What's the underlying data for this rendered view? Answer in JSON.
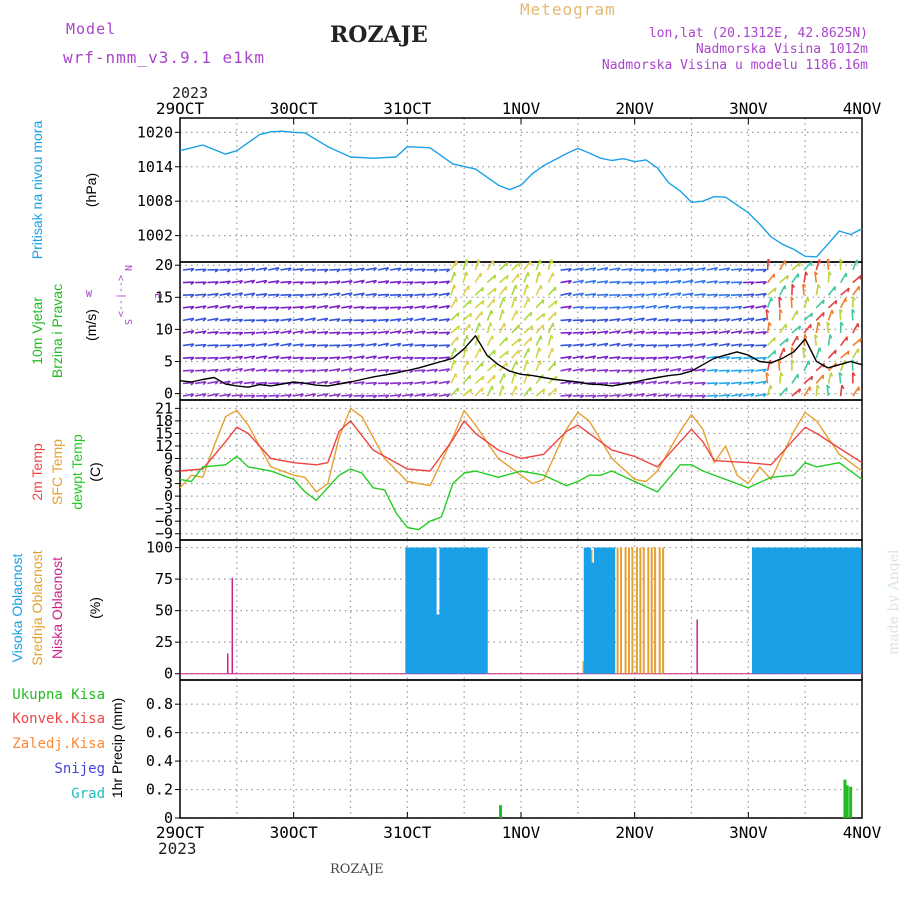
{
  "header": {
    "model_label": "Model",
    "model_name": "wrf-nmm_v3.9.1 e1km",
    "station_title": "ROZAJE",
    "meteogram_label": "Meteogram",
    "lonlat": "lon,lat (20.1312E, 42.8625N)",
    "elevation": "Nadmorska Visina 1012m",
    "model_elevation": "Nadmorska Visina u modelu 1186.16m",
    "footer_station": "ROZAJE",
    "watermark": "made by Angel",
    "year_top": "2023",
    "year_bottom": "2023"
  },
  "colors": {
    "pressure": "#1aa0e6",
    "wind_label": "#22bb22",
    "temp2m": "#ee4444",
    "sfc_temp": "#e6a030",
    "dewpt": "#22cc22",
    "cloud_high": "#1aa0e6",
    "cloud_mid": "#e6a030",
    "cloud_low": "#cc2288",
    "precip_total": "#22bb22",
    "precip_conv": "#ee4444",
    "precip_frz": "#ff8833",
    "precip_snow": "#4444dd",
    "precip_hail": "#22bbbb",
    "header_purple": "#aa44cc",
    "header_orange": "#e6b870"
  },
  "chart_data": [
    {
      "type": "line",
      "panel": "pressure",
      "ylabel": [
        "Pritisak na nivou mora",
        "(hPa)"
      ],
      "x_labels": [
        "29OCT",
        "30OCT",
        "31OCT",
        "1NOV",
        "2NOV",
        "3NOV",
        "4NOV"
      ],
      "yticks": [
        1002,
        1008,
        1014,
        1020
      ],
      "ylim": [
        997.4,
        1022.5
      ],
      "series": [
        {
          "key": "pressure",
          "x": [
            0,
            0.2,
            0.4,
            0.5,
            0.7,
            0.8,
            0.9,
            1.0,
            1.1,
            1.3,
            1.5,
            1.7,
            1.9,
            2.0,
            2.2,
            2.4,
            2.6,
            2.8,
            2.9,
            3.0,
            3.1,
            3.2,
            3.4,
            3.5,
            3.6,
            3.7,
            3.8,
            3.9,
            4.0,
            4.1,
            4.2,
            4.3,
            4.4,
            4.5,
            4.6,
            4.7,
            4.8,
            5.0,
            5.1,
            5.2,
            5.3,
            5.4,
            5.5,
            5.6,
            5.7,
            5.8,
            5.9,
            6.0
          ],
          "y": [
            1016.8,
            1017.8,
            1016.2,
            1016.8,
            1019.6,
            1020.1,
            1020.2,
            1020.0,
            1019.9,
            1017.5,
            1015.7,
            1015.5,
            1015.7,
            1017.5,
            1017.3,
            1014.5,
            1013.6,
            1010.8,
            1010.0,
            1010.8,
            1012.8,
            1014.2,
            1016.3,
            1017.2,
            1016.4,
            1015.5,
            1015.1,
            1015.4,
            1014.9,
            1015.2,
            1013.8,
            1011.2,
            1009.8,
            1007.8,
            1008.0,
            1008.8,
            1008.7,
            1006.0,
            1004.0,
            1001.8,
            1000.5,
            999.6,
            998.4,
            998.3,
            1000.5,
            1002.8,
            1002.2,
            1003.2
          ]
        }
      ]
    },
    {
      "type": "line",
      "panel": "wind",
      "ylabel": [
        "10m Vjetar",
        "Brzina i Pravac",
        "(m/s)"
      ],
      "compass": [
        "N",
        "E",
        "S",
        "W",
        "<--|-->"
      ],
      "yticks": [
        0,
        5,
        10,
        15,
        20
      ],
      "ylim": [
        -1,
        20.5
      ],
      "series": [
        {
          "key": "speed",
          "x": [
            0,
            0.1,
            0.2,
            0.3,
            0.4,
            0.5,
            0.6,
            0.7,
            0.8,
            0.9,
            1.0,
            1.1,
            1.2,
            1.3,
            1.4,
            1.5,
            1.6,
            1.7,
            1.8,
            1.9,
            2.0,
            2.1,
            2.2,
            2.3,
            2.4,
            2.5,
            2.6,
            2.7,
            2.8,
            2.9,
            3.0,
            3.1,
            3.2,
            3.3,
            3.4,
            3.5,
            3.6,
            3.7,
            3.8,
            3.9,
            4.0,
            4.1,
            4.2,
            4.3,
            4.4,
            4.5,
            4.6,
            4.7,
            4.8,
            4.9,
            5.0,
            5.1,
            5.2,
            5.3,
            5.4,
            5.5,
            5.6,
            5.7,
            5.8,
            5.9,
            6.0
          ],
          "y": [
            2.0,
            1.8,
            2.2,
            2.5,
            1.5,
            1.2,
            1.0,
            1.4,
            1.2,
            1.5,
            1.8,
            1.6,
            1.3,
            1.2,
            1.5,
            1.8,
            2.2,
            2.6,
            2.9,
            3.2,
            3.6,
            4.0,
            4.5,
            5.0,
            5.5,
            7.0,
            9.0,
            6.0,
            4.5,
            3.5,
            3.0,
            2.8,
            2.5,
            2.2,
            2.0,
            1.8,
            1.5,
            1.4,
            1.2,
            1.5,
            1.8,
            2.2,
            2.5,
            2.8,
            3.0,
            3.5,
            4.5,
            5.5,
            6.0,
            6.5,
            6.0,
            5.0,
            4.8,
            5.5,
            6.5,
            8.5,
            5.0,
            4.0,
            4.5,
            5.0,
            4.5
          ]
        }
      ]
    },
    {
      "type": "line",
      "panel": "temperature",
      "ylabel": [
        "2m Temp",
        "SFC Temp",
        "dewpt Temp",
        "(C)"
      ],
      "yticks": [
        -9,
        -6,
        -3,
        0,
        3,
        6,
        9,
        12,
        15,
        18,
        21
      ],
      "ylim": [
        -10.5,
        23
      ],
      "series": [
        {
          "key": "t2m",
          "x": [
            0,
            0.2,
            0.4,
            0.5,
            0.6,
            0.8,
            1.0,
            1.2,
            1.3,
            1.4,
            1.5,
            1.7,
            2.0,
            2.2,
            2.4,
            2.5,
            2.6,
            2.8,
            3.0,
            3.2,
            3.4,
            3.5,
            3.6,
            3.8,
            4.0,
            4.2,
            4.4,
            4.5,
            4.6,
            4.7,
            5.0,
            5.2,
            5.4,
            5.5,
            5.6,
            5.8,
            6.0
          ],
          "y": [
            6,
            6.5,
            13,
            16.5,
            15,
            9,
            8,
            7.5,
            8,
            15.5,
            18,
            11,
            6.5,
            6,
            13.5,
            18,
            15,
            11,
            9,
            10,
            15.5,
            17,
            15,
            11,
            9.5,
            7,
            13,
            16,
            13,
            8.5,
            8,
            7.5,
            13.5,
            16.5,
            15,
            11.5,
            8
          ]
        },
        {
          "key": "sfc",
          "x": [
            0,
            0.1,
            0.2,
            0.3,
            0.4,
            0.5,
            0.6,
            0.8,
            1.0,
            1.1,
            1.2,
            1.3,
            1.4,
            1.5,
            1.6,
            1.8,
            2.0,
            2.2,
            2.4,
            2.5,
            2.6,
            2.8,
            3.0,
            3.1,
            3.2,
            3.4,
            3.5,
            3.6,
            3.8,
            4.0,
            4.1,
            4.2,
            4.4,
            4.5,
            4.6,
            4.7,
            4.8,
            4.9,
            5.0,
            5.1,
            5.2,
            5.4,
            5.5,
            5.6,
            5.8,
            6.0
          ],
          "y": [
            2,
            5,
            4.5,
            12,
            19,
            20.5,
            17,
            7,
            5,
            4.5,
            1,
            3,
            14,
            21,
            19,
            9,
            3.5,
            2.5,
            14,
            20.5,
            17,
            9,
            5,
            3,
            4,
            16,
            20,
            18,
            9,
            4,
            3.5,
            6,
            15.5,
            19.5,
            16,
            8,
            12,
            5,
            3,
            7,
            4,
            15.5,
            20,
            18,
            10,
            6
          ]
        },
        {
          "key": "dewpt",
          "x": [
            0,
            0.1,
            0.2,
            0.4,
            0.5,
            0.6,
            0.8,
            1.0,
            1.1,
            1.2,
            1.4,
            1.5,
            1.6,
            1.7,
            1.8,
            1.9,
            2.0,
            2.1,
            2.2,
            2.3,
            2.4,
            2.5,
            2.6,
            2.8,
            3.0,
            3.2,
            3.4,
            3.5,
            3.6,
            3.7,
            3.8,
            4.0,
            4.2,
            4.4,
            4.5,
            4.6,
            4.8,
            5.0,
            5.2,
            5.4,
            5.5,
            5.6,
            5.8,
            6.0
          ],
          "y": [
            4,
            3.5,
            7,
            7.5,
            9.5,
            7,
            6,
            4,
            1,
            -1,
            5,
            6.5,
            5.5,
            2,
            1.5,
            -4,
            -7.5,
            -8,
            -6,
            -5,
            3,
            5.5,
            6,
            4.5,
            6,
            5,
            2.5,
            3.5,
            5,
            5,
            6,
            3.5,
            1,
            7.5,
            7.5,
            6,
            4,
            2,
            4.5,
            5,
            8,
            7,
            8,
            4
          ]
        }
      ]
    },
    {
      "type": "bar",
      "panel": "clouds",
      "ylabel": [
        "Visoka Oblacnost",
        "Srednja Oblacnost",
        "Niska Oblacnost",
        "(%)"
      ],
      "yticks": [
        0,
        25,
        50,
        75,
        100
      ],
      "ylim": [
        -5,
        106
      ],
      "series": [
        {
          "key": "low",
          "x": [
            0.42,
            0.46,
            1.2,
            4.55,
            5.45,
            5.7
          ],
          "y": [
            16,
            76,
            0,
            43,
            80,
            100
          ]
        },
        {
          "key": "mid",
          "x": [
            3.55,
            3.58,
            3.62,
            3.65,
            3.68,
            3.72,
            3.75,
            3.78,
            3.82,
            3.85,
            3.88,
            3.92,
            3.95,
            3.98,
            4.02,
            4.05,
            4.08,
            4.12,
            4.15,
            4.18,
            4.22,
            4.25
          ],
          "y": [
            10,
            100,
            98,
            100,
            65,
            100,
            100,
            100,
            100,
            100,
            100,
            100,
            100,
            100,
            100,
            100,
            100,
            100,
            100,
            100,
            100,
            100
          ]
        },
        {
          "key": "high",
          "x": [
            2.0,
            2.03,
            2.06,
            2.09,
            2.12,
            2.15,
            2.18,
            2.21,
            2.24,
            2.27,
            2.3,
            2.33,
            2.36,
            2.39,
            2.42,
            2.45,
            2.48,
            2.51,
            2.54,
            2.57,
            2.6,
            2.63,
            2.66,
            2.69,
            3.57,
            3.6,
            3.63,
            3.66,
            3.69,
            3.72,
            3.75,
            3.78,
            3.81,
            5.05,
            5.08,
            5.11,
            5.14,
            5.17,
            5.2,
            5.23,
            5.26,
            5.29,
            5.32,
            5.35,
            5.38,
            5.41,
            5.44,
            5.47,
            5.5,
            5.53,
            5.56,
            5.59,
            5.62,
            5.65,
            5.68,
            5.71,
            5.74,
            5.77,
            5.8,
            5.83,
            5.86,
            5.89,
            5.92,
            5.95,
            5.98
          ],
          "y": [
            100,
            100,
            100,
            100,
            100,
            100,
            100,
            100,
            100,
            47,
            100,
            100,
            100,
            100,
            100,
            100,
            100,
            100,
            100,
            100,
            100,
            100,
            100,
            100,
            100,
            100,
            88,
            100,
            100,
            100,
            100,
            100,
            100,
            100,
            100,
            100,
            100,
            100,
            100,
            100,
            100,
            100,
            100,
            100,
            100,
            100,
            100,
            100,
            100,
            100,
            100,
            100,
            100,
            100,
            100,
            100,
            100,
            100,
            100,
            100,
            100,
            100,
            100,
            100,
            100
          ]
        }
      ]
    },
    {
      "type": "bar",
      "panel": "precip",
      "ylabel": [
        "1hr Precip (mm)"
      ],
      "legend": [
        "Ukupna Kisa",
        "Konvek.Kisa",
        "Zaledj.Kisa",
        "Snijeg",
        "Grad"
      ],
      "yticks": [
        0,
        0.2,
        0.4,
        0.6,
        0.8
      ],
      "ylim": [
        0,
        0.97
      ],
      "series": [
        {
          "key": "total",
          "x": [
            2.82,
            5.85,
            5.87,
            5.9
          ],
          "y": [
            0.09,
            0.27,
            0.23,
            0.22
          ]
        }
      ]
    }
  ]
}
